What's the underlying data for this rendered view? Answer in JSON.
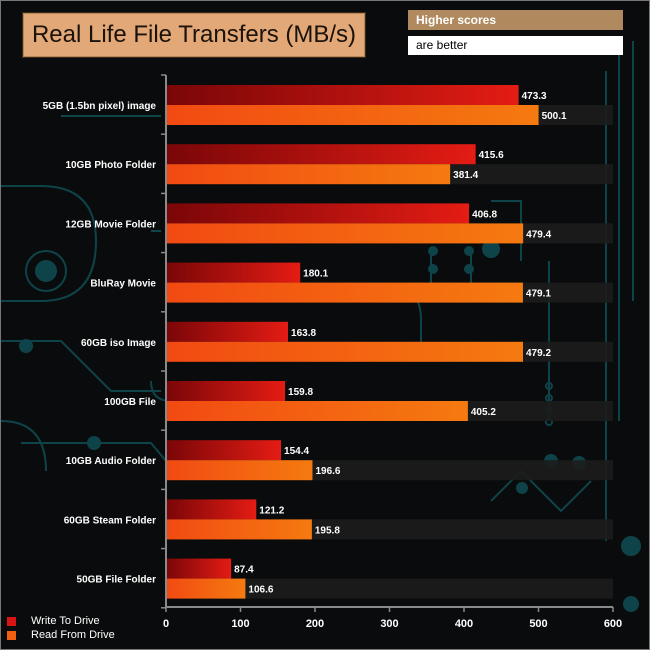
{
  "header": {
    "title": "Real Life File Transfers (MB/s)",
    "note_line1": "Higher scores",
    "note_line2": "are better"
  },
  "colors": {
    "write": "#d81414",
    "read": "#f06010",
    "axis": "#8a8a8a",
    "label": "#ffffff"
  },
  "chart_data": {
    "type": "bar",
    "orientation": "horizontal",
    "title": "Real Life File Transfers (MB/s)",
    "categories": [
      "5GB (1.5bn pixel) image",
      "10GB Photo Folder",
      "12GB Movie Folder",
      "BluRay Movie",
      "60GB iso Image",
      "100GB File",
      "10GB Audio Folder",
      "60GB Steam Folder",
      "50GB File Folder"
    ],
    "series": [
      {
        "name": "Write To  Drive",
        "values": [
          473.3,
          415.6,
          406.8,
          180.1,
          163.8,
          159.8,
          154.4,
          121.2,
          87.4
        ]
      },
      {
        "name": "Read From  Drive",
        "values": [
          500.1,
          381.4,
          479.4,
          479.1,
          479.2,
          405.2,
          196.6,
          195.8,
          106.6
        ]
      }
    ],
    "xlim": [
      0,
      600
    ],
    "xticks": [
      0,
      100,
      200,
      300,
      400,
      500,
      600
    ],
    "legend": "bottom-left",
    "grid": false
  }
}
